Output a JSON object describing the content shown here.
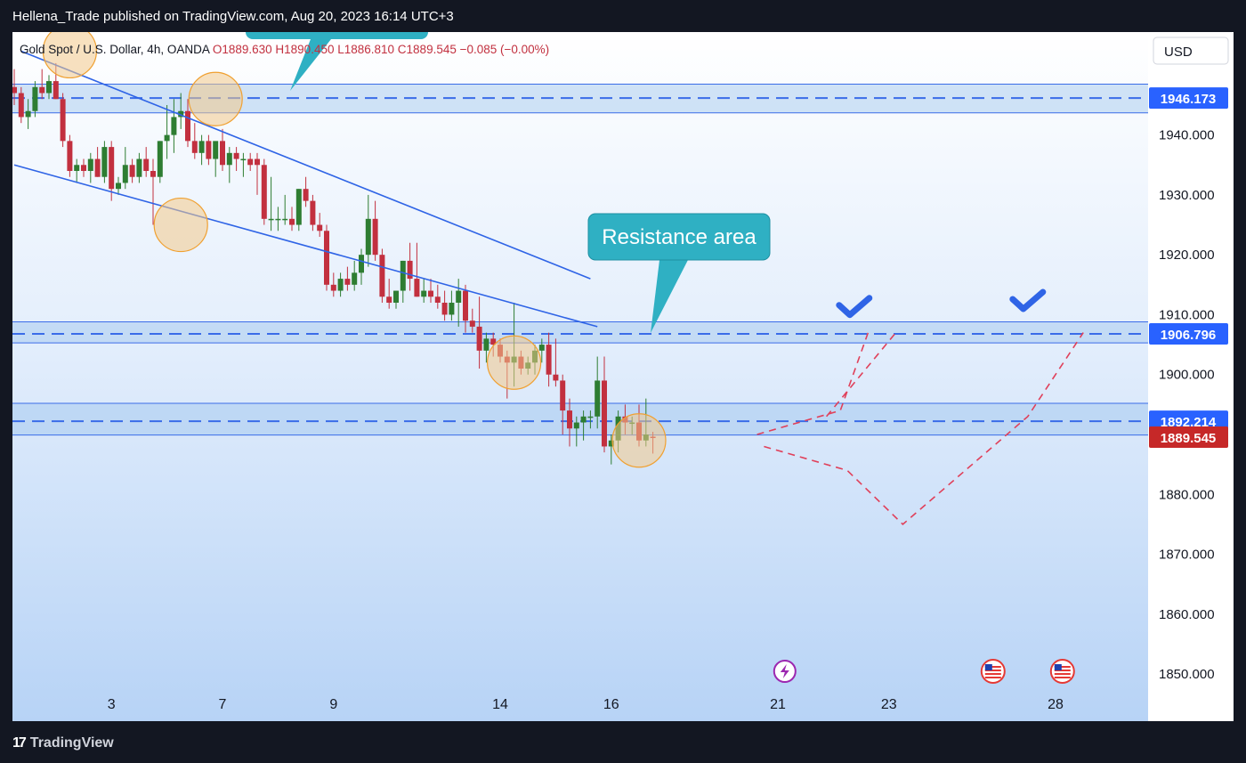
{
  "header": {
    "publisher_line": "Hellena_Trade published on TradingView.com, Aug 20, 2023 16:14 UTC+3"
  },
  "legend": {
    "symbol": "Gold Spot / U.S. Dollar, 4h, OANDA",
    "open": "O1889.630",
    "high": "H1890.450",
    "low": "L1886.810",
    "close": "C1889.545",
    "change": "−0.085 (−0.00%)"
  },
  "currency": "USD",
  "callout": {
    "text": "Resistance area"
  },
  "footer": {
    "logo_text": "TradingView"
  },
  "colors": {
    "up": "#2e7d32",
    "down": "#c2303f",
    "level": "#3a6ce8",
    "channel": "#2f64e6",
    "callout_bg": "#2fb0c3",
    "projection": "#e0405a",
    "circle_fill": "#f2c88a",
    "circle_stroke": "#f0a030",
    "price_tag_blue": "#2962ff",
    "price_tag_red": "#c62828",
    "check": "#2f64e6"
  },
  "chart_data": {
    "type": "candlestick",
    "symbol": "Gold Spot / U.S. Dollar",
    "timeframe": "4h",
    "ylim": [
      1846,
      1956
    ],
    "y_ticks": [
      1850,
      1860,
      1870,
      1880,
      1890,
      1900,
      1910,
      1920,
      1930,
      1940
    ],
    "y_tick_labels": [
      "1850.000",
      "1860.000",
      "1870.000",
      "1880.000",
      "1890.000",
      "1900.000",
      "1910.000",
      "1920.000",
      "1930.000",
      "1940.000"
    ],
    "x_tick_labels": [
      "3",
      "7",
      "9",
      "14",
      "16",
      "21",
      "23",
      "28"
    ],
    "x_tick_slots": [
      14,
      30,
      46,
      70,
      86,
      110,
      126,
      150
    ],
    "candles": [
      {
        "o": 1948,
        "h": 1951,
        "l": 1945,
        "c": 1947
      },
      {
        "o": 1947,
        "h": 1948,
        "l": 1942,
        "c": 1943
      },
      {
        "o": 1943,
        "h": 1946,
        "l": 1941,
        "c": 1944
      },
      {
        "o": 1944,
        "h": 1949,
        "l": 1943,
        "c": 1948
      },
      {
        "o": 1948,
        "h": 1951,
        "l": 1946,
        "c": 1947
      },
      {
        "o": 1947,
        "h": 1950,
        "l": 1946,
        "c": 1949
      },
      {
        "o": 1949,
        "h": 1952,
        "l": 1946,
        "c": 1946
      },
      {
        "o": 1946,
        "h": 1947,
        "l": 1938,
        "c": 1939
      },
      {
        "o": 1939,
        "h": 1940,
        "l": 1933,
        "c": 1934
      },
      {
        "o": 1934,
        "h": 1936,
        "l": 1932,
        "c": 1935
      },
      {
        "o": 1935,
        "h": 1936,
        "l": 1933,
        "c": 1934
      },
      {
        "o": 1934,
        "h": 1937,
        "l": 1932,
        "c": 1936
      },
      {
        "o": 1936,
        "h": 1938,
        "l": 1933,
        "c": 1933
      },
      {
        "o": 1933,
        "h": 1939,
        "l": 1932,
        "c": 1938
      },
      {
        "o": 1938,
        "h": 1939,
        "l": 1929,
        "c": 1931
      },
      {
        "o": 1931,
        "h": 1933,
        "l": 1930,
        "c": 1932
      },
      {
        "o": 1932,
        "h": 1938,
        "l": 1931,
        "c": 1935
      },
      {
        "o": 1935,
        "h": 1936,
        "l": 1932,
        "c": 1933
      },
      {
        "o": 1933,
        "h": 1937,
        "l": 1932,
        "c": 1936
      },
      {
        "o": 1936,
        "h": 1938,
        "l": 1933,
        "c": 1934
      },
      {
        "o": 1934,
        "h": 1936,
        "l": 1925,
        "c": 1933
      },
      {
        "o": 1933,
        "h": 1939,
        "l": 1932,
        "c": 1939
      },
      {
        "o": 1939,
        "h": 1945,
        "l": 1936,
        "c": 1940
      },
      {
        "o": 1940,
        "h": 1946,
        "l": 1937,
        "c": 1943
      },
      {
        "o": 1943,
        "h": 1947,
        "l": 1941,
        "c": 1944
      },
      {
        "o": 1944,
        "h": 1946,
        "l": 1938,
        "c": 1939
      },
      {
        "o": 1939,
        "h": 1942,
        "l": 1936,
        "c": 1937
      },
      {
        "o": 1937,
        "h": 1940,
        "l": 1935,
        "c": 1939
      },
      {
        "o": 1939,
        "h": 1940,
        "l": 1935,
        "c": 1936
      },
      {
        "o": 1936,
        "h": 1938,
        "l": 1933,
        "c": 1939
      },
      {
        "o": 1939,
        "h": 1941,
        "l": 1934,
        "c": 1935
      },
      {
        "o": 1935,
        "h": 1938,
        "l": 1932,
        "c": 1937
      },
      {
        "o": 1937,
        "h": 1938,
        "l": 1934,
        "c": 1936
      },
      {
        "o": 1936,
        "h": 1937,
        "l": 1933,
        "c": 1936
      },
      {
        "o": 1936,
        "h": 1937,
        "l": 1934,
        "c": 1935
      },
      {
        "o": 1936,
        "h": 1937,
        "l": 1930,
        "c": 1935
      },
      {
        "o": 1935,
        "h": 1936,
        "l": 1925,
        "c": 1926
      },
      {
        "o": 1926,
        "h": 1933,
        "l": 1924,
        "c": 1926
      },
      {
        "o": 1926,
        "h": 1928,
        "l": 1924,
        "c": 1926
      },
      {
        "o": 1926,
        "h": 1930,
        "l": 1925,
        "c": 1926
      },
      {
        "o": 1926,
        "h": 1928,
        "l": 1924,
        "c": 1925
      },
      {
        "o": 1925,
        "h": 1931,
        "l": 1924,
        "c": 1931
      },
      {
        "o": 1931,
        "h": 1933,
        "l": 1928,
        "c": 1929
      },
      {
        "o": 1929,
        "h": 1930,
        "l": 1924,
        "c": 1925
      },
      {
        "o": 1925,
        "h": 1927,
        "l": 1923,
        "c": 1924
      },
      {
        "o": 1924,
        "h": 1925,
        "l": 1914,
        "c": 1915
      },
      {
        "o": 1915,
        "h": 1917,
        "l": 1913,
        "c": 1914
      },
      {
        "o": 1914,
        "h": 1917,
        "l": 1913,
        "c": 1916
      },
      {
        "o": 1916,
        "h": 1918,
        "l": 1914,
        "c": 1915
      },
      {
        "o": 1915,
        "h": 1919,
        "l": 1914,
        "c": 1917
      },
      {
        "o": 1917,
        "h": 1921,
        "l": 1915,
        "c": 1920
      },
      {
        "o": 1920,
        "h": 1930,
        "l": 1918,
        "c": 1926
      },
      {
        "o": 1926,
        "h": 1929,
        "l": 1919,
        "c": 1920
      },
      {
        "o": 1920,
        "h": 1921,
        "l": 1912,
        "c": 1913
      },
      {
        "o": 1913,
        "h": 1916,
        "l": 1911,
        "c": 1912
      },
      {
        "o": 1912,
        "h": 1914,
        "l": 1911,
        "c": 1914
      },
      {
        "o": 1914,
        "h": 1919,
        "l": 1912,
        "c": 1919
      },
      {
        "o": 1919,
        "h": 1922,
        "l": 1914,
        "c": 1916
      },
      {
        "o": 1916,
        "h": 1922,
        "l": 1913,
        "c": 1913
      },
      {
        "o": 1913,
        "h": 1916,
        "l": 1912,
        "c": 1914
      },
      {
        "o": 1914,
        "h": 1916,
        "l": 1912,
        "c": 1913
      },
      {
        "o": 1913,
        "h": 1915,
        "l": 1911,
        "c": 1912
      },
      {
        "o": 1912,
        "h": 1914,
        "l": 1909,
        "c": 1910
      },
      {
        "o": 1910,
        "h": 1914,
        "l": 1909,
        "c": 1912
      },
      {
        "o": 1912,
        "h": 1916,
        "l": 1908,
        "c": 1914
      },
      {
        "o": 1914,
        "h": 1915,
        "l": 1907,
        "c": 1909
      },
      {
        "o": 1909,
        "h": 1911,
        "l": 1907,
        "c": 1908
      },
      {
        "o": 1908,
        "h": 1913,
        "l": 1901,
        "c": 1904
      },
      {
        "o": 1904,
        "h": 1907,
        "l": 1902,
        "c": 1906
      },
      {
        "o": 1906,
        "h": 1907,
        "l": 1903,
        "c": 1905
      },
      {
        "o": 1905,
        "h": 1906,
        "l": 1902,
        "c": 1903
      },
      {
        "o": 1903,
        "h": 1904,
        "l": 1896,
        "c": 1902
      },
      {
        "o": 1902,
        "h": 1912,
        "l": 1898,
        "c": 1903
      },
      {
        "o": 1903,
        "h": 1904,
        "l": 1900,
        "c": 1901
      },
      {
        "o": 1901,
        "h": 1903,
        "l": 1900,
        "c": 1902
      },
      {
        "o": 1902,
        "h": 1905,
        "l": 1900,
        "c": 1904
      },
      {
        "o": 1904,
        "h": 1906,
        "l": 1902,
        "c": 1905
      },
      {
        "o": 1905,
        "h": 1907,
        "l": 1898,
        "c": 1900
      },
      {
        "o": 1900,
        "h": 1906,
        "l": 1898,
        "c": 1899
      },
      {
        "o": 1899,
        "h": 1900,
        "l": 1890,
        "c": 1894
      },
      {
        "o": 1894,
        "h": 1896,
        "l": 1888,
        "c": 1891
      },
      {
        "o": 1891,
        "h": 1893,
        "l": 1888,
        "c": 1892
      },
      {
        "o": 1892,
        "h": 1894,
        "l": 1889,
        "c": 1893
      },
      {
        "o": 1893,
        "h": 1894,
        "l": 1891,
        "c": 1893
      },
      {
        "o": 1893,
        "h": 1903,
        "l": 1891,
        "c": 1899
      },
      {
        "o": 1899,
        "h": 1903,
        "l": 1887,
        "c": 1888
      },
      {
        "o": 1888,
        "h": 1890,
        "l": 1885,
        "c": 1889
      },
      {
        "o": 1889,
        "h": 1894,
        "l": 1887,
        "c": 1893
      },
      {
        "o": 1893,
        "h": 1895,
        "l": 1890,
        "c": 1892
      },
      {
        "o": 1892,
        "h": 1893,
        "l": 1890,
        "c": 1892
      },
      {
        "o": 1892,
        "h": 1895,
        "l": 1888,
        "c": 1889
      },
      {
        "o": 1889,
        "h": 1896,
        "l": 1888,
        "c": 1890
      },
      {
        "o": 1889.63,
        "h": 1890.45,
        "l": 1886.81,
        "c": 1889.545
      }
    ],
    "levels": [
      {
        "price": 1946.173,
        "label": "1946.173",
        "band": [
          1943.7,
          1948.5
        ]
      },
      {
        "price": 1906.796,
        "label": "1906.796",
        "band": [
          1905.3,
          1908.8
        ]
      },
      {
        "price": 1892.214,
        "label": "1892.214",
        "band": [
          1889.9,
          1895.2
        ]
      }
    ],
    "last_price": {
      "price": 1889.545,
      "label": "1889.545"
    },
    "trendlines": [
      {
        "from": [
          1,
          1954
        ],
        "to": [
          83,
          1916
        ]
      },
      {
        "from": [
          0,
          1935
        ],
        "to": [
          84,
          1908
        ]
      }
    ],
    "highlight_circles": [
      {
        "slot": 8,
        "price": 1954
      },
      {
        "slot": 29,
        "price": 1946
      },
      {
        "slot": 24,
        "price": 1925
      },
      {
        "slot": 72,
        "price": 1902
      },
      {
        "slot": 90,
        "price": 1889
      }
    ],
    "projection_paths": [
      [
        [
          108,
          1888
        ],
        [
          120,
          1884
        ],
        [
          128,
          1875
        ],
        [
          146,
          1893
        ],
        [
          154,
          1907
        ]
      ],
      [
        [
          107,
          1890
        ],
        [
          119,
          1894
        ],
        [
          123,
          1907
        ]
      ],
      [
        [
          117,
          1893
        ],
        [
          127,
          1907
        ]
      ]
    ],
    "targets": [
      {
        "slot": 121,
        "price": 1911
      },
      {
        "slot": 146,
        "price": 1912
      }
    ],
    "event_markers": [
      {
        "slot": 111,
        "kind": "lightning-icon"
      },
      {
        "slot": 141,
        "kind": "us-flag-icon"
      },
      {
        "slot": 151,
        "kind": "us-flag-icon"
      }
    ]
  }
}
